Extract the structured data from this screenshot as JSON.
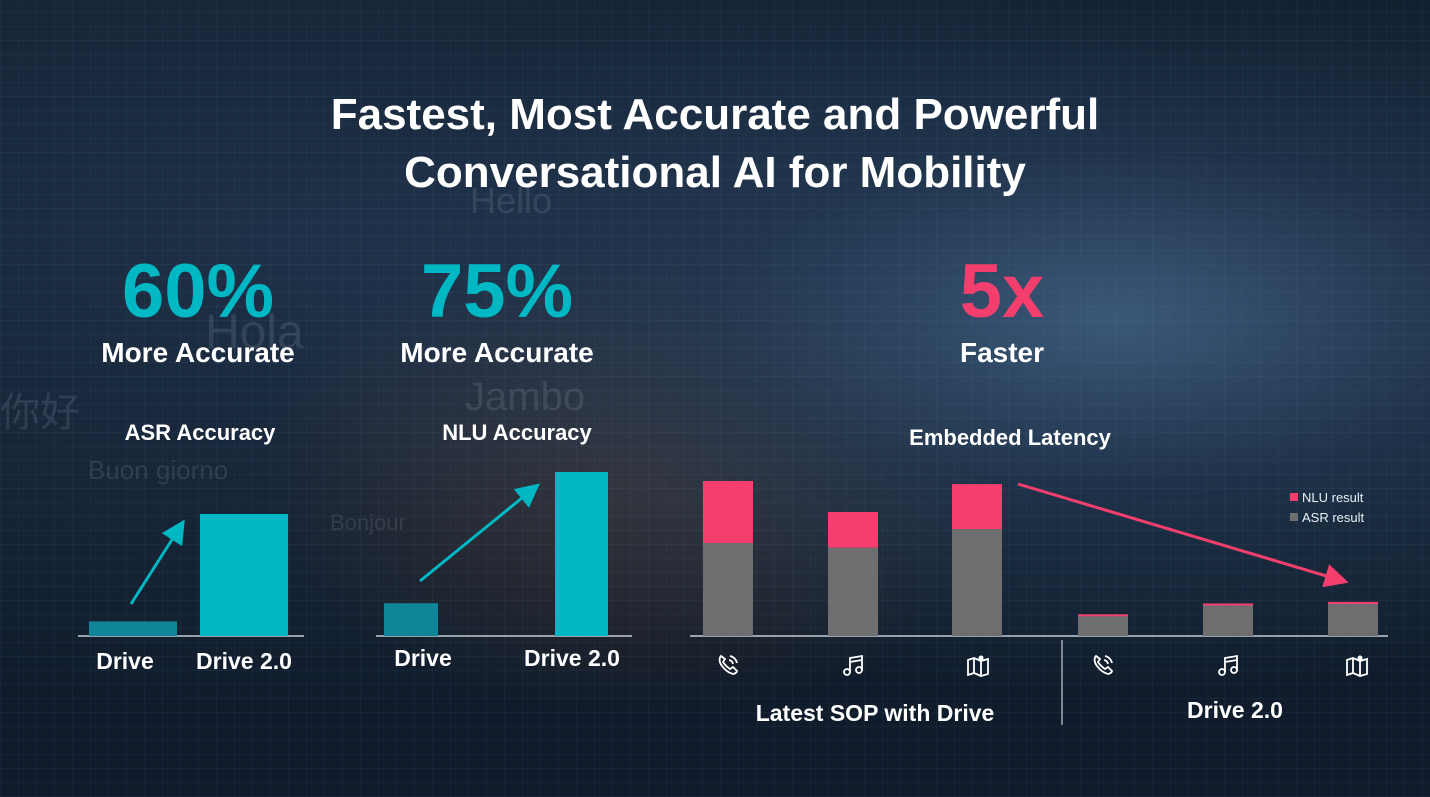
{
  "title_line1": "Fastest, Most Accurate and Powerful",
  "title_line2": "Conversational AI for Mobility",
  "colors": {
    "teal": "#00b7c4",
    "teal_dark": "#0f8597",
    "pink": "#f43f6e",
    "gray": "#6e6e70"
  },
  "stats": [
    {
      "value": "60%",
      "label": "More Accurate"
    },
    {
      "value": "75%",
      "label": "More Accurate"
    },
    {
      "value": "5x",
      "label": "Faster"
    }
  ],
  "chart_data": [
    {
      "type": "bar",
      "title": "ASR Accuracy",
      "categories": [
        "Drive",
        "Drive 2.0"
      ],
      "values": [
        0.12,
        1.0
      ],
      "annotation": "upward arrow from Drive to Drive 2.0"
    },
    {
      "type": "bar",
      "title": "NLU Accuracy",
      "categories": [
        "Drive",
        "Drive 2.0"
      ],
      "values": [
        0.2,
        1.0
      ],
      "annotation": "upward arrow from Drive to Drive 2.0"
    },
    {
      "type": "bar",
      "stacked": true,
      "title": "Embedded Latency",
      "groups": [
        "Latest SOP with Drive",
        "Drive 2.0"
      ],
      "categories": [
        "call",
        "music",
        "map",
        "call",
        "music",
        "map"
      ],
      "category_icons": [
        "phone-icon",
        "music-icon",
        "map-icon",
        "phone-icon",
        "music-icon",
        "map-icon"
      ],
      "series": [
        {
          "name": "ASR result",
          "color": "#6e6e70",
          "values": [
            0.6,
            0.57,
            0.69,
            0.13,
            0.2,
            0.21
          ]
        },
        {
          "name": "NLU result",
          "color": "#f43f6e",
          "values": [
            0.4,
            0.23,
            0.29,
            0.01,
            0.01,
            0.01
          ]
        }
      ],
      "legend_position": "top-right",
      "annotation": "downward arrow from SOP bars to Drive 2.0 bars"
    }
  ]
}
